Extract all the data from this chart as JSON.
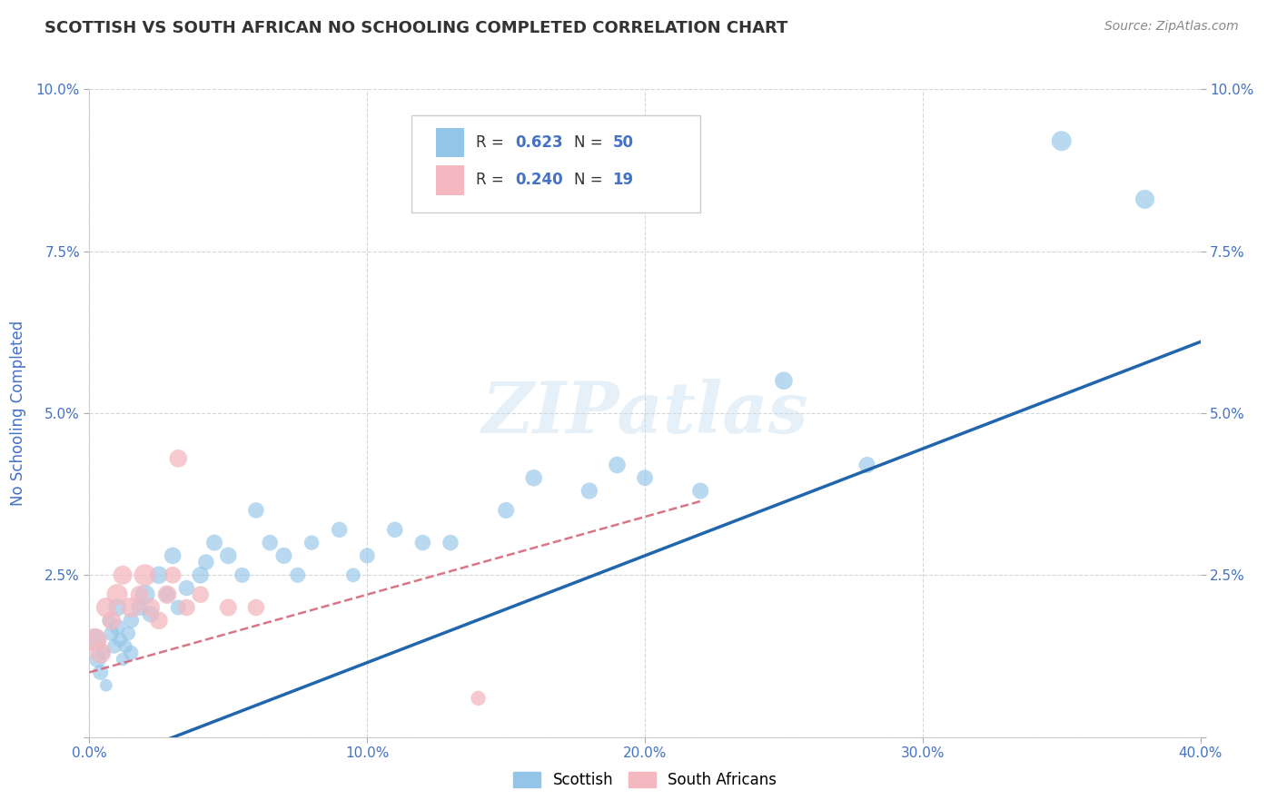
{
  "title": "SCOTTISH VS SOUTH AFRICAN NO SCHOOLING COMPLETED CORRELATION CHART",
  "source": "Source: ZipAtlas.com",
  "ylabel": "No Schooling Completed",
  "xlim": [
    -0.005,
    0.405
  ],
  "ylim": [
    -0.005,
    0.105
  ],
  "plot_xlim": [
    0.0,
    0.4
  ],
  "plot_ylim": [
    0.0,
    0.1
  ],
  "xticks": [
    0.0,
    0.1,
    0.2,
    0.3,
    0.4
  ],
  "yticks": [
    0.0,
    0.025,
    0.05,
    0.075,
    0.1
  ],
  "xtick_labels": [
    "0.0%",
    "10.0%",
    "20.0%",
    "30.0%",
    "40.0%"
  ],
  "ytick_labels": [
    "",
    "2.5%",
    "5.0%",
    "7.5%",
    "10.0%"
  ],
  "legend_labels": [
    "Scottish",
    "South Africans"
  ],
  "blue_color": "#92c5e8",
  "pink_color": "#f4b8c0",
  "blue_line_color": "#2166ac",
  "pink_line_color": "#d4667a",
  "title_color": "#333333",
  "tick_label_color": "#4472c4",
  "watermark": "ZIPatlas",
  "scottish_x": [
    0.002,
    0.003,
    0.004,
    0.005,
    0.006,
    0.007,
    0.008,
    0.009,
    0.01,
    0.01,
    0.011,
    0.012,
    0.013,
    0.014,
    0.015,
    0.015,
    0.018,
    0.02,
    0.022,
    0.025,
    0.028,
    0.03,
    0.032,
    0.035,
    0.04,
    0.042,
    0.045,
    0.05,
    0.055,
    0.06,
    0.065,
    0.07,
    0.075,
    0.08,
    0.09,
    0.095,
    0.1,
    0.11,
    0.12,
    0.13,
    0.15,
    0.16,
    0.18,
    0.19,
    0.2,
    0.22,
    0.25,
    0.28,
    0.35,
    0.38
  ],
  "scottish_y": [
    0.015,
    0.012,
    0.01,
    0.013,
    0.008,
    0.018,
    0.016,
    0.014,
    0.02,
    0.017,
    0.015,
    0.012,
    0.014,
    0.016,
    0.018,
    0.013,
    0.02,
    0.022,
    0.019,
    0.025,
    0.022,
    0.028,
    0.02,
    0.023,
    0.025,
    0.027,
    0.03,
    0.028,
    0.025,
    0.035,
    0.03,
    0.028,
    0.025,
    0.03,
    0.032,
    0.025,
    0.028,
    0.032,
    0.03,
    0.03,
    0.035,
    0.04,
    0.038,
    0.042,
    0.04,
    0.038,
    0.055,
    0.042,
    0.092,
    0.083
  ],
  "scottish_size": [
    300,
    180,
    150,
    120,
    100,
    120,
    150,
    130,
    200,
    160,
    130,
    110,
    120,
    130,
    160,
    140,
    170,
    250,
    180,
    200,
    160,
    180,
    150,
    160,
    180,
    160,
    170,
    180,
    150,
    160,
    160,
    170,
    150,
    140,
    160,
    130,
    150,
    160,
    160,
    160,
    170,
    180,
    175,
    180,
    165,
    170,
    200,
    170,
    250,
    230
  ],
  "sa_x": [
    0.002,
    0.004,
    0.006,
    0.008,
    0.01,
    0.012,
    0.015,
    0.018,
    0.02,
    0.022,
    0.025,
    0.028,
    0.03,
    0.032,
    0.035,
    0.04,
    0.05,
    0.06,
    0.14
  ],
  "sa_y": [
    0.015,
    0.013,
    0.02,
    0.018,
    0.022,
    0.025,
    0.02,
    0.022,
    0.025,
    0.02,
    0.018,
    0.022,
    0.025,
    0.043,
    0.02,
    0.022,
    0.02,
    0.02,
    0.006
  ],
  "sa_size": [
    350,
    280,
    250,
    220,
    280,
    230,
    250,
    200,
    300,
    220,
    200,
    220,
    180,
    200,
    180,
    180,
    190,
    180,
    140
  ],
  "blue_intercept": -0.005,
  "blue_slope": 0.165,
  "pink_intercept": 0.01,
  "pink_slope": 0.12,
  "pink_line_xmax": 0.22,
  "background_color": "#ffffff",
  "grid_color": "#cccccc"
}
